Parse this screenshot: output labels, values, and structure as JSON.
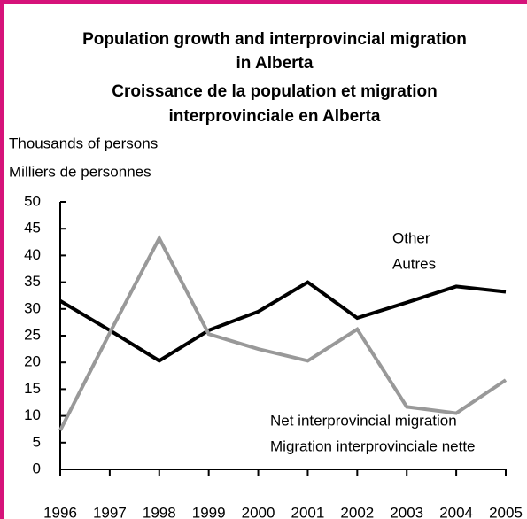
{
  "chart_data": {
    "type": "line",
    "title_lines": [
      "Population growth and interprovincial migration",
      "in Alberta",
      "Croissance de la population et migration",
      "interprovinciale en Alberta"
    ],
    "y_label_lines": [
      "Thousands of persons",
      "Milliers de personnes"
    ],
    "categories": [
      "1996",
      "1997",
      "1998",
      "1999",
      "2000",
      "2001",
      "2002",
      "2003",
      "2004",
      "2005"
    ],
    "series": [
      {
        "name": "Other",
        "name_fr": "Autres",
        "color": "#000000",
        "values": [
          31.5,
          26,
          20.3,
          26,
          29.5,
          35,
          28.3,
          31.2,
          34.2,
          33.2
        ]
      },
      {
        "name": "Net interprovincial migration",
        "name_fr": "Migration interprovinciale nette",
        "color": "#999999",
        "values": [
          7.3,
          25.5,
          43.2,
          25.3,
          22.5,
          20.3,
          26.2,
          11.7,
          10.5,
          16.7
        ]
      }
    ],
    "ylim": [
      0,
      50
    ],
    "yticks": [
      0,
      5,
      10,
      15,
      20,
      25,
      30,
      35,
      40,
      45,
      50
    ],
    "grid": false
  }
}
